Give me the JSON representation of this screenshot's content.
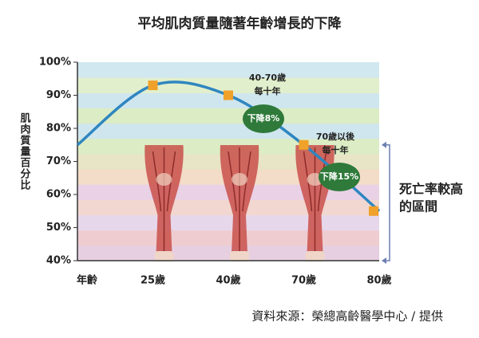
{
  "chart_data": {
    "type": "line",
    "title": "平均肌肉質量隨著年齡增長的下降",
    "y_label": "肌肉質量百分比",
    "categories": [
      "年齡",
      "25歲",
      "40歲",
      "70歲",
      "80歲"
    ],
    "series": [
      {
        "color": "#2f86c0",
        "marker_color": "#f0a12a",
        "values": [
          75,
          93,
          90,
          75,
          55
        ]
      }
    ],
    "ylim": [
      40,
      100
    ],
    "yticks": [
      {
        "value": 40,
        "label": "40%"
      },
      {
        "value": 50,
        "label": "50%"
      },
      {
        "value": 60,
        "label": "60%"
      },
      {
        "value": 70,
        "label": "70%"
      },
      {
        "value": 80,
        "label": "80%"
      },
      {
        "value": 90,
        "label": "90%"
      },
      {
        "value": 100,
        "label": "100%"
      }
    ],
    "band_colors": [
      "#e6cfe0",
      "#eeccd0",
      "#e7d7ea",
      "#f1d7cf",
      "#e9d2e6",
      "#f3dcc8",
      "#e8e4c6",
      "#dcecc4",
      "#cfe6ee",
      "#dcecc4",
      "#cfe6ee",
      "#e2efcc",
      "#d2e8f0"
    ],
    "annotations": [
      {
        "lines": [
          "40-70歲",
          "每十年"
        ],
        "badge": "下降8%"
      },
      {
        "lines": [
          "70歲以後",
          "每十年"
        ],
        "badge": "下降15%"
      }
    ],
    "bracket": {
      "ylim": [
        40,
        75
      ],
      "lines": [
        "死亡率較高",
        "的區間"
      ],
      "color": "#6b7fb0"
    },
    "source": "資料來源：榮總高齡醫學中心 / 提供"
  }
}
